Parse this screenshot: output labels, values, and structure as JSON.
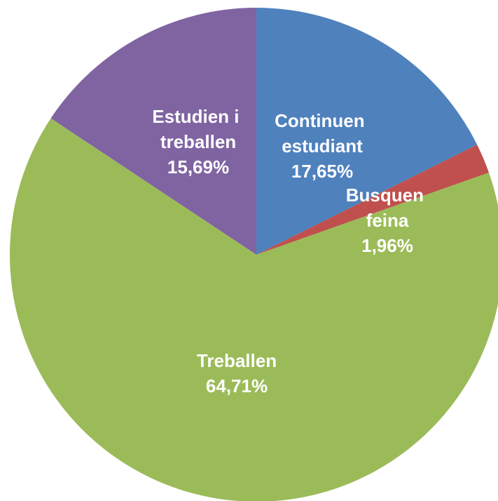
{
  "chart_data": {
    "type": "pie",
    "categories": [
      "Continuen estudiant",
      "Busquen feina",
      "Treballen",
      "Estudien i treballen"
    ],
    "values": [
      17.65,
      1.96,
      64.71,
      15.69
    ],
    "value_labels": [
      "17,65%",
      "1,96%",
      "64,71%",
      "15,69%"
    ],
    "colors": [
      "#4f81bd",
      "#c0504d",
      "#9bbb59",
      "#8064a2"
    ]
  }
}
